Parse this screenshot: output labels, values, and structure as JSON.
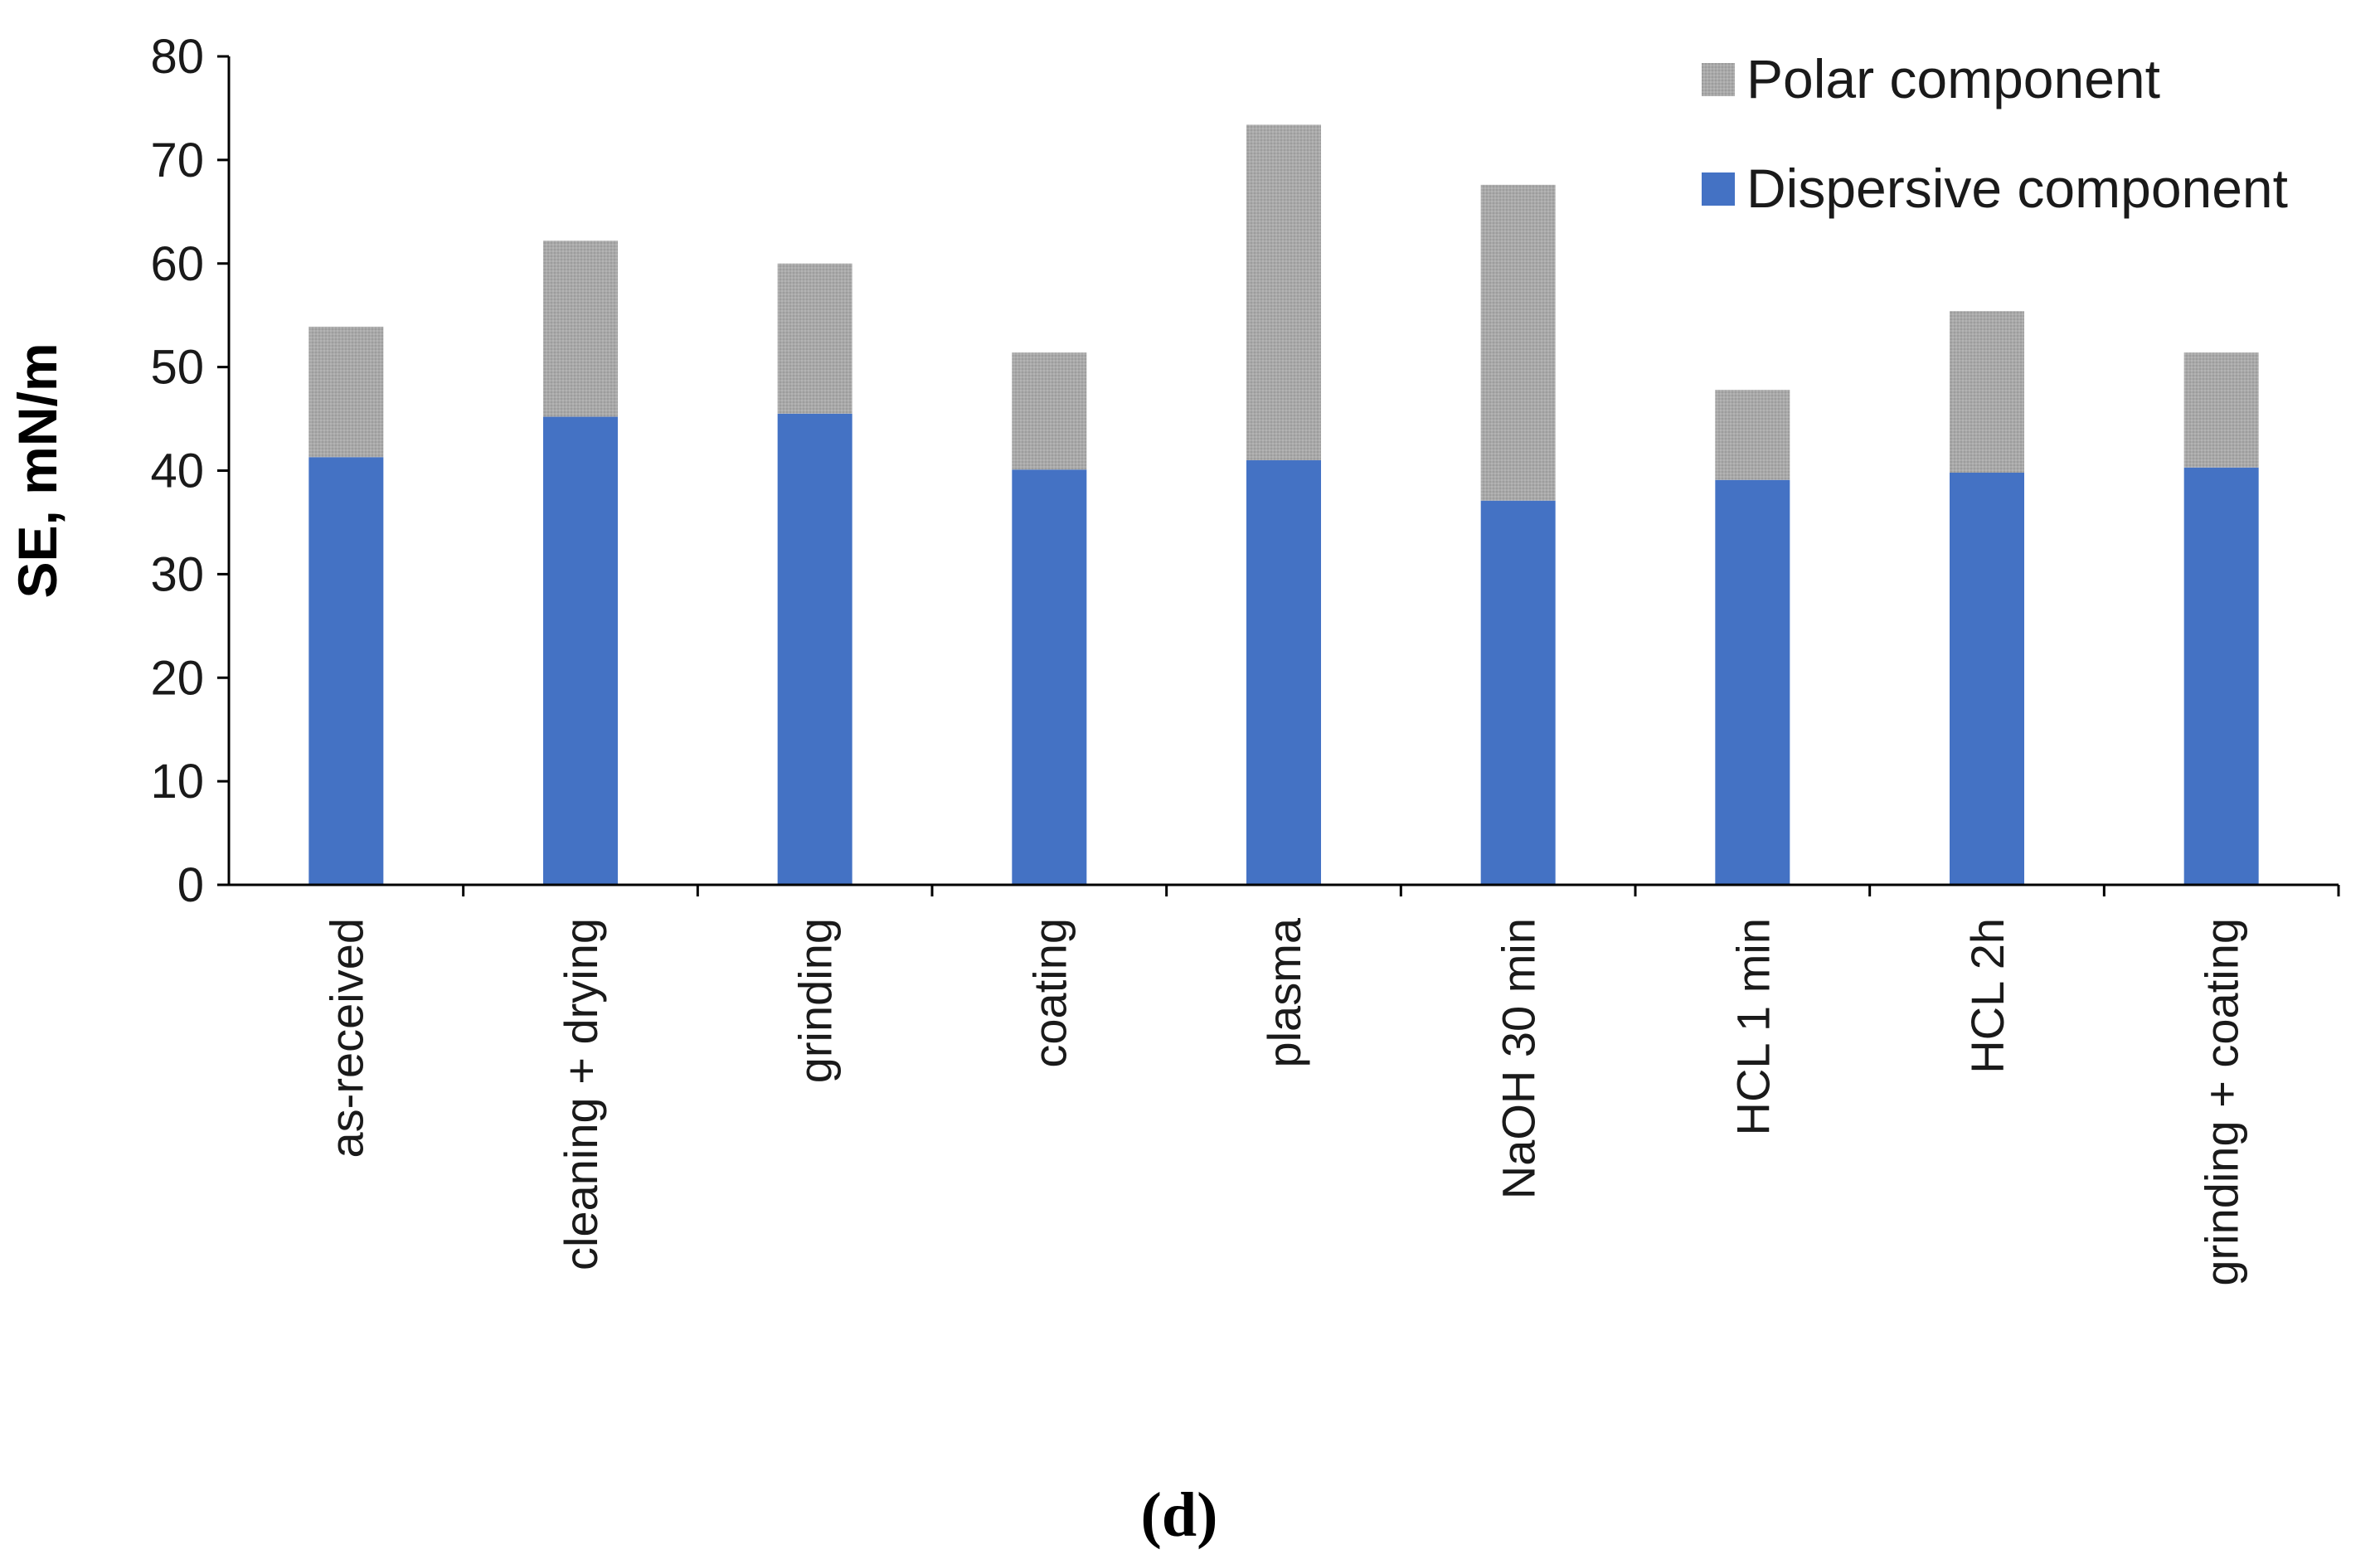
{
  "chart_data": {
    "type": "bar",
    "stacked": true,
    "categories": [
      "as-received",
      "cleaning + drying",
      "grinding",
      "coating",
      "plasma",
      "NaOH 30 min",
      "HCL 1 min",
      "HCL 2h",
      "grinding + coating"
    ],
    "series": [
      {
        "name": "Dispersive component",
        "color": "#4472C4",
        "values": [
          41.3,
          45.2,
          45.5,
          40.1,
          41.0,
          37.1,
          39.1,
          39.8,
          40.3
        ]
      },
      {
        "name": "Polar component",
        "color": "#A6A6A6",
        "values": [
          12.6,
          17.0,
          14.5,
          11.3,
          32.4,
          30.5,
          8.7,
          15.6,
          11.1
        ]
      }
    ],
    "ylabel": "SE, mN/m",
    "xlabel": "",
    "ylim": [
      0,
      80
    ],
    "yticks": [
      "0",
      "10",
      "20",
      "30",
      "40",
      "50",
      "60",
      "70",
      "80"
    ],
    "grid": false,
    "legend": {
      "placement": "top-right",
      "entries": [
        "Polar component",
        "Dispersive component"
      ]
    },
    "panel_label": "(d)"
  }
}
